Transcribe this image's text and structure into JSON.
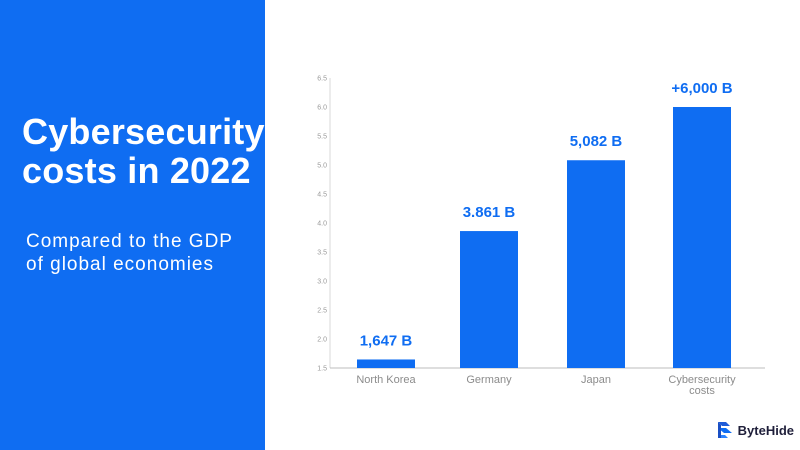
{
  "panel": {
    "title_lines": [
      "Cybersecurity",
      "costs in 2022"
    ],
    "subtitle_lines": [
      "Compared to the GDP",
      "of global economies"
    ]
  },
  "brand": {
    "name": "ByteHide",
    "accent": "#0f6df2"
  },
  "chart_data": {
    "type": "bar",
    "title": "Cybersecurity costs in 2022",
    "subtitle": "Compared to the GDP of global economies",
    "xlabel": "",
    "ylabel": "",
    "categories": [
      [
        "North Korea"
      ],
      [
        "Germany"
      ],
      [
        "Japan"
      ],
      [
        "Cybersecurity",
        "costs"
      ]
    ],
    "values": [
      1.647,
      3.861,
      5.082,
      6.0
    ],
    "value_labels": [
      "1,647 B",
      "3.861 B",
      "5,082 B",
      "+6,000 B"
    ],
    "ylim": [
      1.5,
      6.5
    ],
    "yticks": [
      "1.5",
      "2.0",
      "2.5",
      "3.0",
      "3.5",
      "4.0",
      "4.5",
      "5.0",
      "5.5",
      "6.0",
      "6.5"
    ],
    "grid": false,
    "legend": "none",
    "bar_color": "#0f6df2"
  }
}
